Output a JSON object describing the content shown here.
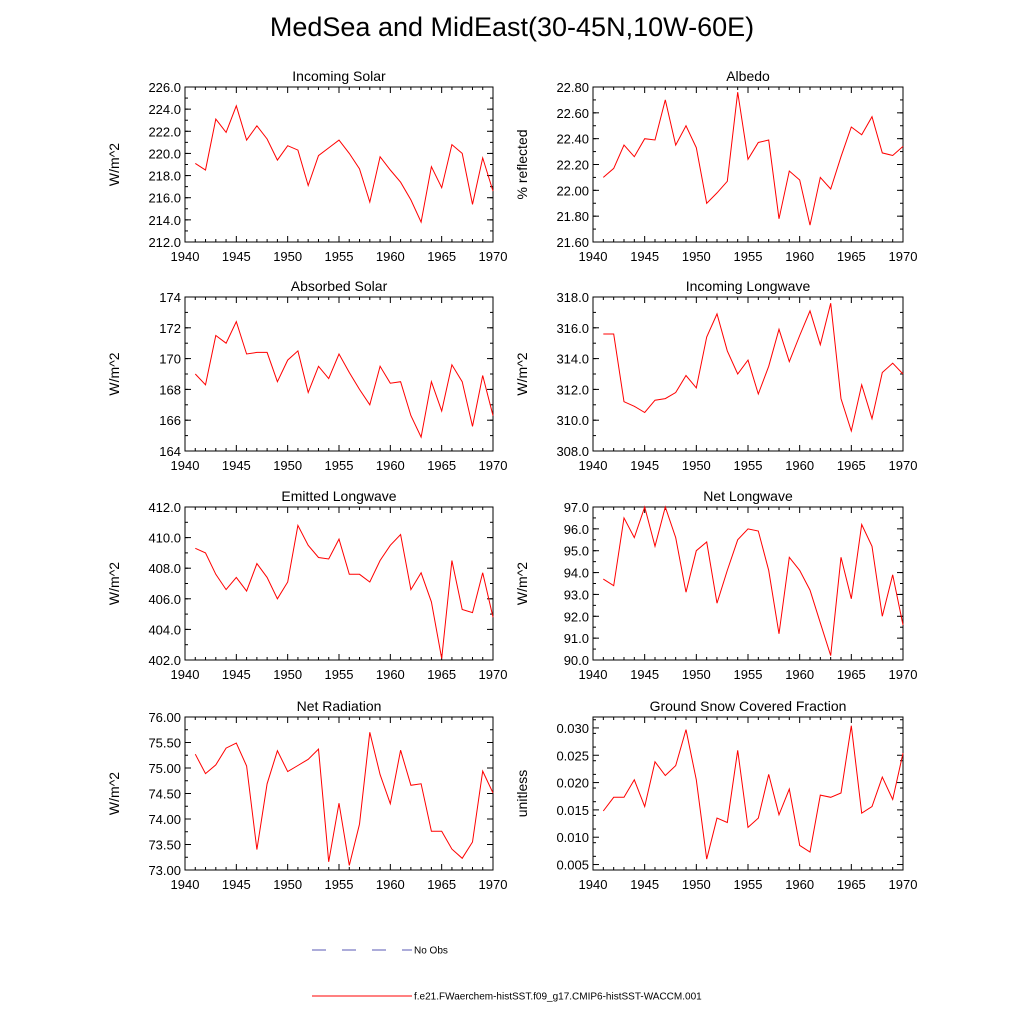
{
  "title": "MedSea and MidEast(30-45N,10W-60E)",
  "legend": {
    "items": [
      {
        "label": "No Obs",
        "color": "#5a5ab4",
        "dash": true
      },
      {
        "label": "f.e21.FWaerchem-histSST.f09_g17.CMIP6-histSST-WACCM.001",
        "color": "#ff0000",
        "dash": false
      }
    ]
  },
  "chart_data": [
    {
      "type": "line",
      "title": "Incoming Solar",
      "ylabel": "W/m^2",
      "xlim": [
        1940,
        1970
      ],
      "ylim": [
        212,
        226
      ],
      "yticks": [
        212,
        214,
        216,
        218,
        220,
        222,
        224,
        226
      ],
      "ytick_labels": [
        "212.0",
        "214.0",
        "216.0",
        "218.0",
        "220.0",
        "222.0",
        "224.0",
        "226.0"
      ],
      "xticks": [
        1940,
        1945,
        1950,
        1955,
        1960,
        1965,
        1970
      ],
      "xtick_labels": [
        "1940",
        "1945",
        "1950",
        "1955",
        "1960",
        "1965",
        "1970"
      ],
      "x": [
        1941,
        1942,
        1943,
        1944,
        1945,
        1946,
        1947,
        1948,
        1949,
        1950,
        1951,
        1952,
        1953,
        1954,
        1955,
        1956,
        1957,
        1958,
        1959,
        1960,
        1961,
        1962,
        1963,
        1964,
        1965,
        1966,
        1967,
        1968,
        1969,
        1970
      ],
      "series": [
        {
          "color": "#ff0000",
          "values": [
            219.1,
            218.5,
            223.1,
            221.9,
            224.3,
            221.2,
            222.5,
            221.3,
            219.4,
            220.7,
            220.3,
            217.1,
            219.8,
            220.5,
            221.2,
            220.0,
            218.6,
            215.6,
            219.7,
            218.5,
            217.4,
            215.8,
            213.8,
            218.8,
            216.9,
            220.8,
            220.0,
            215.4,
            219.6,
            216.6
          ]
        }
      ]
    },
    {
      "type": "line",
      "title": "Albedo",
      "ylabel": "% reflected",
      "xlim": [
        1940,
        1970
      ],
      "ylim": [
        21.6,
        22.8
      ],
      "yticks": [
        21.6,
        21.8,
        22.0,
        22.2,
        22.4,
        22.6,
        22.8
      ],
      "ytick_labels": [
        "21.60",
        "21.80",
        "22.00",
        "22.20",
        "22.40",
        "22.60",
        "22.80"
      ],
      "xticks": [
        1940,
        1945,
        1950,
        1955,
        1960,
        1965,
        1970
      ],
      "xtick_labels": [
        "1940",
        "1945",
        "1950",
        "1955",
        "1960",
        "1965",
        "1970"
      ],
      "x": [
        1941,
        1942,
        1943,
        1944,
        1945,
        1946,
        1947,
        1948,
        1949,
        1950,
        1951,
        1952,
        1953,
        1954,
        1955,
        1956,
        1957,
        1958,
        1959,
        1960,
        1961,
        1962,
        1963,
        1964,
        1965,
        1966,
        1967,
        1968,
        1969,
        1970
      ],
      "series": [
        {
          "color": "#ff0000",
          "values": [
            22.1,
            22.17,
            22.35,
            22.26,
            22.4,
            22.39,
            22.7,
            22.35,
            22.5,
            22.33,
            21.9,
            21.98,
            22.07,
            22.76,
            22.24,
            22.37,
            22.39,
            21.78,
            22.15,
            22.08,
            21.73,
            22.1,
            22.01,
            22.26,
            22.49,
            22.43,
            22.57,
            22.29,
            22.27,
            22.34
          ]
        }
      ]
    },
    {
      "type": "line",
      "title": "Absorbed Solar",
      "ylabel": "W/m^2",
      "xlim": [
        1940,
        1970
      ],
      "ylim": [
        164,
        174
      ],
      "yticks": [
        164,
        166,
        168,
        170,
        172,
        174
      ],
      "ytick_labels": [
        "164",
        "166",
        "168",
        "170",
        "172",
        "174"
      ],
      "xticks": [
        1940,
        1945,
        1950,
        1955,
        1960,
        1965,
        1970
      ],
      "xtick_labels": [
        "1940",
        "1945",
        "1950",
        "1955",
        "1960",
        "1965",
        "1970"
      ],
      "x": [
        1941,
        1942,
        1943,
        1944,
        1945,
        1946,
        1947,
        1948,
        1949,
        1950,
        1951,
        1952,
        1953,
        1954,
        1955,
        1956,
        1957,
        1958,
        1959,
        1960,
        1961,
        1962,
        1963,
        1964,
        1965,
        1966,
        1967,
        1968,
        1969,
        1970
      ],
      "series": [
        {
          "color": "#ff0000",
          "values": [
            169.0,
            168.3,
            171.5,
            171.0,
            172.4,
            170.3,
            170.4,
            170.4,
            168.5,
            169.9,
            170.5,
            167.8,
            169.5,
            168.7,
            170.3,
            169.1,
            168.0,
            167.0,
            169.5,
            168.4,
            168.5,
            166.3,
            164.9,
            168.5,
            166.6,
            169.6,
            168.5,
            165.6,
            168.9,
            166.3
          ]
        }
      ]
    },
    {
      "type": "line",
      "title": "Incoming Longwave",
      "ylabel": "W/m^2",
      "xlim": [
        1940,
        1970
      ],
      "ylim": [
        308,
        318
      ],
      "yticks": [
        308,
        310,
        312,
        314,
        316,
        318
      ],
      "ytick_labels": [
        "308.0",
        "310.0",
        "312.0",
        "314.0",
        "316.0",
        "318.0"
      ],
      "xticks": [
        1940,
        1945,
        1950,
        1955,
        1960,
        1965,
        1970
      ],
      "xtick_labels": [
        "1940",
        "1945",
        "1950",
        "1955",
        "1960",
        "1965",
        "1970"
      ],
      "x": [
        1941,
        1942,
        1943,
        1944,
        1945,
        1946,
        1947,
        1948,
        1949,
        1950,
        1951,
        1952,
        1953,
        1954,
        1955,
        1956,
        1957,
        1958,
        1959,
        1960,
        1961,
        1962,
        1963,
        1964,
        1965,
        1966,
        1967,
        1968,
        1969,
        1970
      ],
      "series": [
        {
          "color": "#ff0000",
          "values": [
            315.6,
            315.6,
            311.2,
            310.9,
            310.5,
            311.3,
            311.4,
            311.8,
            312.9,
            312.1,
            315.4,
            316.9,
            314.5,
            313.0,
            313.9,
            311.7,
            313.5,
            315.9,
            313.8,
            315.5,
            317.1,
            314.9,
            317.6,
            311.4,
            309.3,
            312.3,
            310.1,
            313.1,
            313.7,
            313.0
          ]
        }
      ]
    },
    {
      "type": "line",
      "title": "Emitted Longwave",
      "ylabel": "W/m^2",
      "xlim": [
        1940,
        1970
      ],
      "ylim": [
        402,
        412
      ],
      "yticks": [
        402,
        404,
        406,
        408,
        410,
        412
      ],
      "ytick_labels": [
        "402.0",
        "404.0",
        "406.0",
        "408.0",
        "410.0",
        "412.0"
      ],
      "xticks": [
        1940,
        1945,
        1950,
        1955,
        1960,
        1965,
        1970
      ],
      "xtick_labels": [
        "1940",
        "1945",
        "1950",
        "1955",
        "1960",
        "1965",
        "1970"
      ],
      "x": [
        1941,
        1942,
        1943,
        1944,
        1945,
        1946,
        1947,
        1948,
        1949,
        1950,
        1951,
        1952,
        1953,
        1954,
        1955,
        1956,
        1957,
        1958,
        1959,
        1960,
        1961,
        1962,
        1963,
        1964,
        1965,
        1966,
        1967,
        1968,
        1969,
        1970
      ],
      "series": [
        {
          "color": "#ff0000",
          "values": [
            409.3,
            409.0,
            407.6,
            406.6,
            407.4,
            406.5,
            408.3,
            407.4,
            406.0,
            407.1,
            410.8,
            409.5,
            408.7,
            408.6,
            409.9,
            407.6,
            407.6,
            407.1,
            408.5,
            409.5,
            410.2,
            406.6,
            407.7,
            405.8,
            402.1,
            408.5,
            405.3,
            405.1,
            407.7,
            404.8
          ]
        }
      ]
    },
    {
      "type": "line",
      "title": "Net Longwave",
      "ylabel": "W/m^2",
      "xlim": [
        1940,
        1970
      ],
      "ylim": [
        90,
        97
      ],
      "yticks": [
        90,
        91,
        92,
        93,
        94,
        95,
        96,
        97
      ],
      "ytick_labels": [
        "90.0",
        "91.0",
        "92.0",
        "93.0",
        "94.0",
        "95.0",
        "96.0",
        "97.0"
      ],
      "xticks": [
        1940,
        1945,
        1950,
        1955,
        1960,
        1965,
        1970
      ],
      "xtick_labels": [
        "1940",
        "1945",
        "1950",
        "1955",
        "1960",
        "1965",
        "1970"
      ],
      "x": [
        1941,
        1942,
        1943,
        1944,
        1945,
        1946,
        1947,
        1948,
        1949,
        1950,
        1951,
        1952,
        1953,
        1954,
        1955,
        1956,
        1957,
        1958,
        1959,
        1960,
        1961,
        1962,
        1963,
        1964,
        1965,
        1966,
        1967,
        1968,
        1969,
        1970
      ],
      "series": [
        {
          "color": "#ff0000",
          "values": [
            93.7,
            93.4,
            96.5,
            95.6,
            97.0,
            95.2,
            97.0,
            95.6,
            93.1,
            95.0,
            95.4,
            92.6,
            94.1,
            95.5,
            96.0,
            95.9,
            94.1,
            91.2,
            94.7,
            94.1,
            93.2,
            91.7,
            90.2,
            94.7,
            92.8,
            96.2,
            95.2,
            92.0,
            93.9,
            91.6
          ]
        }
      ]
    },
    {
      "type": "line",
      "title": "Net Radiation",
      "ylabel": "W/m^2",
      "xlim": [
        1940,
        1970
      ],
      "ylim": [
        73.0,
        76.0
      ],
      "yticks": [
        73.0,
        73.5,
        74.0,
        74.5,
        75.0,
        75.5,
        76.0
      ],
      "ytick_labels": [
        "73.00",
        "73.50",
        "74.00",
        "74.50",
        "75.00",
        "75.50",
        "76.00"
      ],
      "xticks": [
        1940,
        1945,
        1950,
        1955,
        1960,
        1965,
        1970
      ],
      "xtick_labels": [
        "1940",
        "1945",
        "1950",
        "1955",
        "1960",
        "1965",
        "1970"
      ],
      "x": [
        1941,
        1942,
        1943,
        1944,
        1945,
        1946,
        1947,
        1948,
        1949,
        1950,
        1951,
        1952,
        1953,
        1954,
        1955,
        1956,
        1957,
        1958,
        1959,
        1960,
        1961,
        1962,
        1963,
        1964,
        1965,
        1966,
        1967,
        1968,
        1969,
        1970
      ],
      "series": [
        {
          "color": "#ff0000",
          "values": [
            75.27,
            74.89,
            75.06,
            75.39,
            75.49,
            75.04,
            73.4,
            74.69,
            75.34,
            74.93,
            75.05,
            75.17,
            75.37,
            73.16,
            74.31,
            73.09,
            73.9,
            75.7,
            74.87,
            74.3,
            75.35,
            74.66,
            74.69,
            73.76,
            73.76,
            73.41,
            73.23,
            73.55,
            74.94,
            74.51
          ]
        }
      ]
    },
    {
      "type": "line",
      "title": "Ground Snow Covered Fraction",
      "ylabel": "unitless",
      "xlim": [
        1940,
        1970
      ],
      "ylim": [
        0.004,
        0.032
      ],
      "yticks": [
        0.005,
        0.01,
        0.015,
        0.02,
        0.025,
        0.03
      ],
      "ytick_labels": [
        "0.005",
        "0.010",
        "0.015",
        "0.020",
        "0.025",
        "0.030"
      ],
      "xticks": [
        1940,
        1945,
        1950,
        1955,
        1960,
        1965,
        1970
      ],
      "xtick_labels": [
        "1940",
        "1945",
        "1950",
        "1955",
        "1960",
        "1965",
        "1970"
      ],
      "x": [
        1941,
        1942,
        1943,
        1944,
        1945,
        1946,
        1947,
        1948,
        1949,
        1950,
        1951,
        1952,
        1953,
        1954,
        1955,
        1956,
        1957,
        1958,
        1959,
        1960,
        1961,
        1962,
        1963,
        1964,
        1965,
        1966,
        1967,
        1968,
        1969,
        1970
      ],
      "series": [
        {
          "color": "#ff0000",
          "values": [
            0.0148,
            0.0173,
            0.0173,
            0.0205,
            0.0156,
            0.0238,
            0.0213,
            0.0231,
            0.0297,
            0.0205,
            0.006,
            0.0135,
            0.0127,
            0.0259,
            0.0118,
            0.0135,
            0.0215,
            0.0141,
            0.0188,
            0.0085,
            0.0073,
            0.0177,
            0.0173,
            0.0181,
            0.0304,
            0.0144,
            0.0156,
            0.021,
            0.0169,
            0.0254
          ]
        }
      ]
    }
  ]
}
